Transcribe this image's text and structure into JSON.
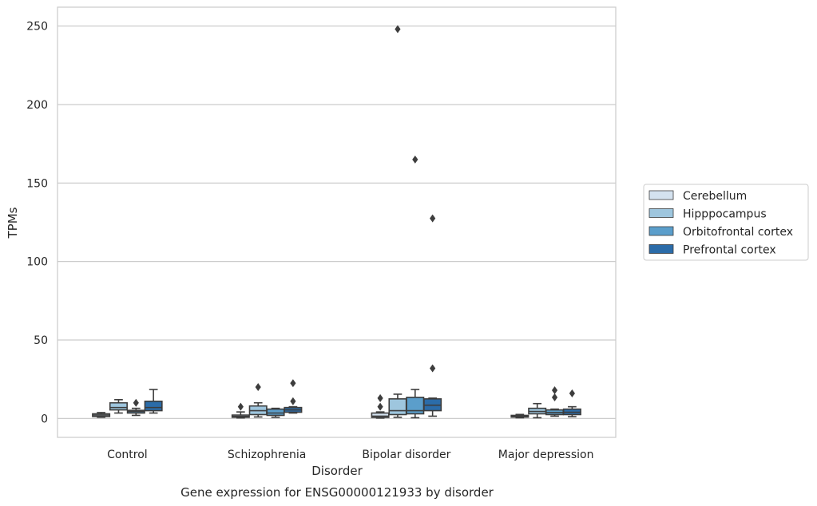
{
  "chart_data": {
    "type": "box",
    "title": "",
    "caption": "Gene expression for ENSG00000121933 by disorder",
    "xlabel": "Disorder",
    "ylabel": "TPMs",
    "ylim": [
      -12,
      262
    ],
    "yticks": [
      0,
      50,
      100,
      150,
      200,
      250
    ],
    "grid": "horizontal",
    "legend_placement": "right",
    "categories": [
      "Control",
      "Schizophrenia",
      "Bipolar disorder",
      "Major depression"
    ],
    "series": [
      {
        "name": "Cerebellum",
        "color": "#d4e2ef",
        "boxes": [
          {
            "min": 0.8,
            "q1": 1.3,
            "median": 2.2,
            "q3": 3.0,
            "max": 3.8,
            "outliers": []
          },
          {
            "min": 0.4,
            "q1": 0.8,
            "median": 1.3,
            "q3": 2.2,
            "max": 4.2,
            "outliers": [
              7.5
            ]
          },
          {
            "min": 0.3,
            "q1": 0.7,
            "median": 1.5,
            "q3": 3.5,
            "max": 4.2,
            "outliers": [
              7.5,
              13.0
            ]
          },
          {
            "min": 0.5,
            "q1": 0.9,
            "median": 1.4,
            "q3": 2.0,
            "max": 2.6,
            "outliers": []
          }
        ]
      },
      {
        "name": "Hipppocampus",
        "color": "#9ec6de",
        "boxes": [
          {
            "min": 3.5,
            "q1": 5.5,
            "median": 7.0,
            "q3": 10.0,
            "max": 12.0,
            "outliers": []
          },
          {
            "min": 1.0,
            "q1": 2.5,
            "median": 5.0,
            "q3": 8.0,
            "max": 10.0,
            "outliers": [
              20.0
            ]
          },
          {
            "min": 0.8,
            "q1": 2.5,
            "median": 5.0,
            "q3": 12.5,
            "max": 15.5,
            "outliers": [
              248.0
            ]
          },
          {
            "min": 0.5,
            "q1": 3.0,
            "median": 4.5,
            "q3": 6.5,
            "max": 9.5,
            "outliers": []
          }
        ]
      },
      {
        "name": "Orbitofrontal cortex",
        "color": "#5b9ecb",
        "boxes": [
          {
            "min": 2.0,
            "q1": 3.5,
            "median": 4.5,
            "q3": 5.2,
            "max": 6.5,
            "outliers": [
              10.0
            ]
          },
          {
            "min": 0.8,
            "q1": 2.0,
            "median": 3.5,
            "q3": 6.0,
            "max": 6.5,
            "outliers": []
          },
          {
            "min": 0.5,
            "q1": 3.0,
            "median": 5.0,
            "q3": 13.5,
            "max": 18.5,
            "outliers": [
              165.0
            ]
          },
          {
            "min": 1.5,
            "q1": 2.5,
            "median": 3.8,
            "q3": 5.5,
            "max": 6.0,
            "outliers": [
              13.5,
              18.0
            ]
          }
        ]
      },
      {
        "name": "Prefrontal cortex",
        "color": "#2b6ca9",
        "boxes": [
          {
            "min": 3.5,
            "q1": 5.0,
            "median": 7.0,
            "q3": 11.0,
            "max": 18.5,
            "outliers": []
          },
          {
            "min": 3.5,
            "q1": 4.0,
            "median": 5.5,
            "q3": 7.0,
            "max": 7.5,
            "outliers": [
              11.0,
              22.5
            ]
          },
          {
            "min": 1.5,
            "q1": 5.0,
            "median": 8.5,
            "q3": 12.5,
            "max": 13.0,
            "outliers": [
              32.0,
              127.5
            ]
          },
          {
            "min": 1.2,
            "q1": 2.5,
            "median": 4.0,
            "q3": 6.0,
            "max": 7.5,
            "outliers": [
              16.0
            ]
          }
        ]
      }
    ]
  }
}
